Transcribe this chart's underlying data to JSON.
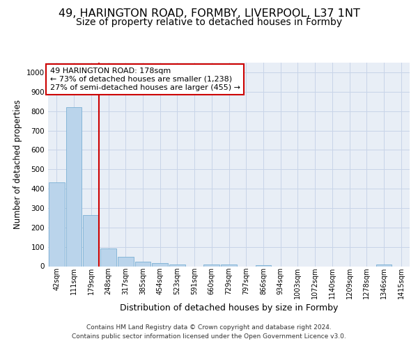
{
  "title_line1": "49, HARINGTON ROAD, FORMBY, LIVERPOOL, L37 1NT",
  "title_line2": "Size of property relative to detached houses in Formby",
  "xlabel": "Distribution of detached houses by size in Formby",
  "ylabel": "Number of detached properties",
  "footer_line1": "Contains HM Land Registry data © Crown copyright and database right 2024.",
  "footer_line2": "Contains public sector information licensed under the Open Government Licence v3.0.",
  "property_label": "49 HARINGTON ROAD: 178sqm",
  "annotation_line1": "← 73% of detached houses are smaller (1,238)",
  "annotation_line2": "27% of semi-detached houses are larger (455) →",
  "bar_labels": [
    "42sqm",
    "111sqm",
    "179sqm",
    "248sqm",
    "317sqm",
    "385sqm",
    "454sqm",
    "523sqm",
    "591sqm",
    "660sqm",
    "729sqm",
    "797sqm",
    "866sqm",
    "934sqm",
    "1003sqm",
    "1072sqm",
    "1140sqm",
    "1209sqm",
    "1278sqm",
    "1346sqm",
    "1415sqm"
  ],
  "bar_values": [
    433,
    820,
    265,
    90,
    48,
    22,
    16,
    10,
    0,
    10,
    10,
    0,
    5,
    0,
    0,
    0,
    0,
    0,
    0,
    8,
    0
  ],
  "bar_color": "#bad4eb",
  "bar_edge_color": "#7aafd4",
  "highlight_line_color": "#cc0000",
  "highlight_bar_index": 2,
  "ylim": [
    0,
    1050
  ],
  "yticks": [
    0,
    100,
    200,
    300,
    400,
    500,
    600,
    700,
    800,
    900,
    1000
  ],
  "grid_color": "#c8d4e8",
  "bg_color": "#e8eef6",
  "annotation_box_color": "#cc0000",
  "title_fontsize": 11.5,
  "subtitle_fontsize": 10,
  "ylabel_fontsize": 8.5,
  "xlabel_fontsize": 9,
  "tick_fontsize": 7,
  "footer_fontsize": 6.5,
  "annotation_fontsize": 8
}
